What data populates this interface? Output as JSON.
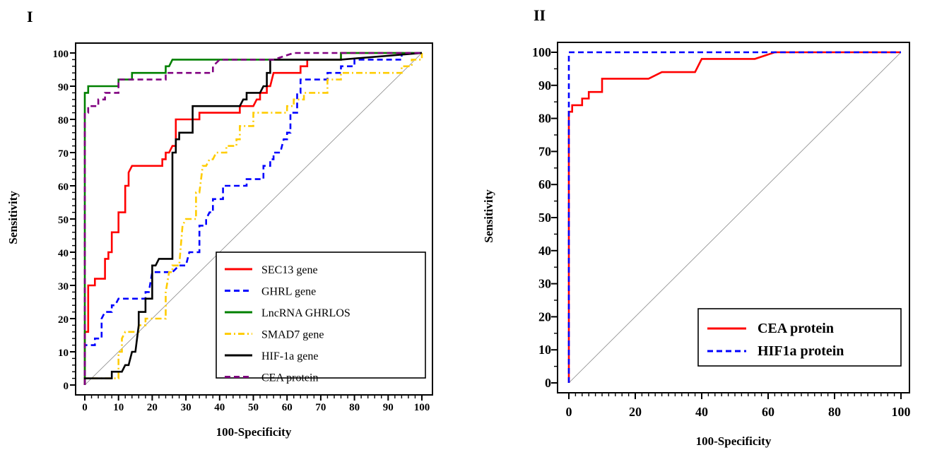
{
  "chart_data": [
    {
      "type": "line",
      "panel_label": "I",
      "xlabel": "100-Specificity",
      "ylabel": "Sensitivity",
      "xlim": [
        0,
        100
      ],
      "ylim": [
        0,
        100
      ],
      "x_ticks": [
        0,
        10,
        20,
        30,
        40,
        50,
        60,
        70,
        80,
        90,
        100
      ],
      "y_ticks": [
        0,
        10,
        20,
        30,
        40,
        50,
        60,
        70,
        80,
        90,
        100
      ],
      "grid": false,
      "legend_position": "bottom-right",
      "reference_line": {
        "from": [
          0,
          0
        ],
        "to": [
          100,
          100
        ]
      },
      "series": [
        {
          "name": "SEC13 gene",
          "color": "#ff0000",
          "dash": "solid",
          "points": [
            [
              0,
              0
            ],
            [
              0,
              16
            ],
            [
              1,
              16
            ],
            [
              1,
              30
            ],
            [
              3,
              30
            ],
            [
              3,
              32
            ],
            [
              6,
              32
            ],
            [
              6,
              38
            ],
            [
              7,
              38
            ],
            [
              7,
              40
            ],
            [
              8,
              40
            ],
            [
              8,
              46
            ],
            [
              10,
              46
            ],
            [
              10,
              52
            ],
            [
              12,
              52
            ],
            [
              12,
              60
            ],
            [
              13,
              60
            ],
            [
              13,
              64
            ],
            [
              14,
              66
            ],
            [
              20,
              66
            ],
            [
              23,
              66
            ],
            [
              23,
              68
            ],
            [
              24,
              68
            ],
            [
              24,
              70
            ],
            [
              25,
              70
            ],
            [
              26,
              72
            ],
            [
              27,
              72
            ],
            [
              27,
              80
            ],
            [
              34,
              80
            ],
            [
              34,
              82
            ],
            [
              46,
              82
            ],
            [
              46,
              84
            ],
            [
              50,
              84
            ],
            [
              51,
              86
            ],
            [
              52,
              86
            ],
            [
              52,
              88
            ],
            [
              54,
              88
            ],
            [
              54,
              90
            ],
            [
              55,
              90
            ],
            [
              56,
              94
            ],
            [
              61,
              94
            ],
            [
              61,
              94
            ],
            [
              64,
              94
            ],
            [
              64,
              96
            ],
            [
              66,
              96
            ],
            [
              66,
              98
            ],
            [
              76,
              98
            ],
            [
              76,
              100
            ],
            [
              100,
              100
            ]
          ]
        },
        {
          "name": "GHRL gene",
          "color": "#0000ff",
          "dash": "dashed",
          "points": [
            [
              0,
              0
            ],
            [
              0,
              12
            ],
            [
              3,
              12
            ],
            [
              3,
              14
            ],
            [
              5,
              14
            ],
            [
              5,
              20
            ],
            [
              6,
              22
            ],
            [
              8,
              22
            ],
            [
              8,
              24
            ],
            [
              9,
              24
            ],
            [
              10,
              26
            ],
            [
              18,
              26
            ],
            [
              18,
              28
            ],
            [
              19,
              28
            ],
            [
              20,
              34
            ],
            [
              26,
              34
            ],
            [
              28,
              36
            ],
            [
              30,
              36
            ],
            [
              31,
              40
            ],
            [
              34,
              40
            ],
            [
              34,
              48
            ],
            [
              36,
              48
            ],
            [
              36,
              50
            ],
            [
              37,
              52
            ],
            [
              38,
              52
            ],
            [
              38,
              56
            ],
            [
              41,
              56
            ],
            [
              41,
              60
            ],
            [
              48,
              60
            ],
            [
              48,
              62
            ],
            [
              53,
              62
            ],
            [
              53,
              66
            ],
            [
              55,
              66
            ],
            [
              55,
              68
            ],
            [
              56,
              68
            ],
            [
              56,
              70
            ],
            [
              58,
              70
            ],
            [
              59,
              74
            ],
            [
              60,
              74
            ],
            [
              60,
              76
            ],
            [
              61,
              76
            ],
            [
              61,
              82
            ],
            [
              63,
              82
            ],
            [
              63,
              88
            ],
            [
              64,
              88
            ],
            [
              64,
              92
            ],
            [
              72,
              92
            ],
            [
              72,
              94
            ],
            [
              76,
              94
            ],
            [
              76,
              96
            ],
            [
              80,
              96
            ],
            [
              80,
              98
            ],
            [
              86,
              98
            ],
            [
              86,
              98
            ],
            [
              94,
              98
            ],
            [
              94,
              100
            ],
            [
              100,
              100
            ]
          ]
        },
        {
          "name": "LncRNA GHRLOS",
          "color": "#008000",
          "dash": "solid",
          "points": [
            [
              0,
              0
            ],
            [
              0,
              88
            ],
            [
              1,
              88
            ],
            [
              1,
              90
            ],
            [
              10,
              90
            ],
            [
              10,
              92
            ],
            [
              14,
              92
            ],
            [
              14,
              94
            ],
            [
              24,
              94
            ],
            [
              24,
              96
            ],
            [
              25,
              96
            ],
            [
              26,
              98
            ],
            [
              76,
              98
            ],
            [
              76,
              100
            ],
            [
              100,
              100
            ]
          ]
        },
        {
          "name": "SMAD7 gene",
          "color": "#ffcc00",
          "dash": "dashdot",
          "points": [
            [
              0,
              0
            ],
            [
              0,
              2
            ],
            [
              10,
              2
            ],
            [
              10,
              10
            ],
            [
              11,
              10
            ],
            [
              11,
              14
            ],
            [
              12,
              16
            ],
            [
              16,
              16
            ],
            [
              16,
              18
            ],
            [
              18,
              18
            ],
            [
              18,
              20
            ],
            [
              24,
              20
            ],
            [
              24,
              28
            ],
            [
              25,
              34
            ],
            [
              26,
              34
            ],
            [
              26,
              36
            ],
            [
              28,
              36
            ],
            [
              29,
              48
            ],
            [
              30,
              50
            ],
            [
              33,
              50
            ],
            [
              33,
              58
            ],
            [
              34,
              58
            ],
            [
              35,
              66
            ],
            [
              36,
              66
            ],
            [
              37,
              68
            ],
            [
              38,
              68
            ],
            [
              39,
              70
            ],
            [
              42,
              70
            ],
            [
              42,
              72
            ],
            [
              45,
              72
            ],
            [
              45,
              74
            ],
            [
              46,
              74
            ],
            [
              46,
              78
            ],
            [
              50,
              78
            ],
            [
              50,
              82
            ],
            [
              60,
              82
            ],
            [
              60,
              84
            ],
            [
              62,
              84
            ],
            [
              62,
              86
            ],
            [
              65,
              86
            ],
            [
              65,
              88
            ],
            [
              72,
              88
            ],
            [
              72,
              92
            ],
            [
              76,
              92
            ],
            [
              76,
              94
            ],
            [
              94,
              94
            ],
            [
              94,
              96
            ],
            [
              97,
              96
            ],
            [
              97,
              98
            ],
            [
              100,
              98
            ],
            [
              100,
              100
            ]
          ]
        },
        {
          "name": "HIF-1a gene",
          "color": "#000000",
          "dash": "solid",
          "points": [
            [
              0,
              0
            ],
            [
              0,
              2
            ],
            [
              8,
              2
            ],
            [
              8,
              4
            ],
            [
              11,
              4
            ],
            [
              12,
              6
            ],
            [
              13,
              6
            ],
            [
              14,
              10
            ],
            [
              15,
              10
            ],
            [
              16,
              18
            ],
            [
              16,
              22
            ],
            [
              18,
              22
            ],
            [
              18,
              26
            ],
            [
              20,
              26
            ],
            [
              20,
              36
            ],
            [
              21,
              36
            ],
            [
              22,
              38
            ],
            [
              26,
              38
            ],
            [
              26,
              70
            ],
            [
              27,
              70
            ],
            [
              27,
              74
            ],
            [
              28,
              74
            ],
            [
              28,
              76
            ],
            [
              32,
              76
            ],
            [
              32,
              84
            ],
            [
              46,
              84
            ],
            [
              47,
              86
            ],
            [
              48,
              86
            ],
            [
              48,
              88
            ],
            [
              52,
              88
            ],
            [
              53,
              90
            ],
            [
              54,
              90
            ],
            [
              54,
              94
            ],
            [
              55,
              94
            ],
            [
              55,
              98
            ],
            [
              76,
              98
            ],
            [
              100,
              100
            ]
          ]
        },
        {
          "name": "CEA protein",
          "color": "#800080",
          "dash": "dashed",
          "points": [
            [
              0,
              0
            ],
            [
              0,
              82
            ],
            [
              1,
              82
            ],
            [
              1,
              84
            ],
            [
              4,
              84
            ],
            [
              4,
              86
            ],
            [
              6,
              86
            ],
            [
              6,
              88
            ],
            [
              10,
              88
            ],
            [
              10,
              92
            ],
            [
              24,
              92
            ],
            [
              24,
              94
            ],
            [
              28,
              94
            ],
            [
              28,
              94
            ],
            [
              38,
              94
            ],
            [
              38,
              96
            ],
            [
              40,
              98
            ],
            [
              56,
              98
            ],
            [
              56,
              98
            ],
            [
              62,
              100
            ],
            [
              100,
              100
            ]
          ]
        }
      ]
    },
    {
      "type": "line",
      "panel_label": "II",
      "xlabel": "100-Specificity",
      "ylabel": "Sensitivity",
      "xlim": [
        0,
        100
      ],
      "ylim": [
        0,
        100
      ],
      "x_ticks": [
        0,
        20,
        40,
        60,
        80,
        100
      ],
      "y_ticks": [
        0,
        10,
        20,
        30,
        40,
        50,
        60,
        70,
        80,
        90,
        100
      ],
      "grid": false,
      "legend_position": "bottom-right",
      "reference_line": {
        "from": [
          0,
          0
        ],
        "to": [
          100,
          100
        ]
      },
      "series": [
        {
          "name": "CEA protein",
          "color": "#ff0000",
          "dash": "solid",
          "points": [
            [
              0,
              0
            ],
            [
              0,
              82
            ],
            [
              1,
              82
            ],
            [
              1,
              84
            ],
            [
              4,
              84
            ],
            [
              4,
              86
            ],
            [
              6,
              86
            ],
            [
              6,
              88
            ],
            [
              10,
              88
            ],
            [
              10,
              92
            ],
            [
              24,
              92
            ],
            [
              24,
              92
            ],
            [
              28,
              94
            ],
            [
              38,
              94
            ],
            [
              40,
              98
            ],
            [
              54,
              98
            ],
            [
              56,
              98
            ],
            [
              62,
              100
            ],
            [
              100,
              100
            ]
          ]
        },
        {
          "name": "HIF1a protein",
          "color": "#0000ff",
          "dash": "dashed",
          "points": [
            [
              0,
              0
            ],
            [
              0,
              82
            ],
            [
              0,
              100
            ],
            [
              100,
              100
            ]
          ]
        }
      ]
    }
  ]
}
